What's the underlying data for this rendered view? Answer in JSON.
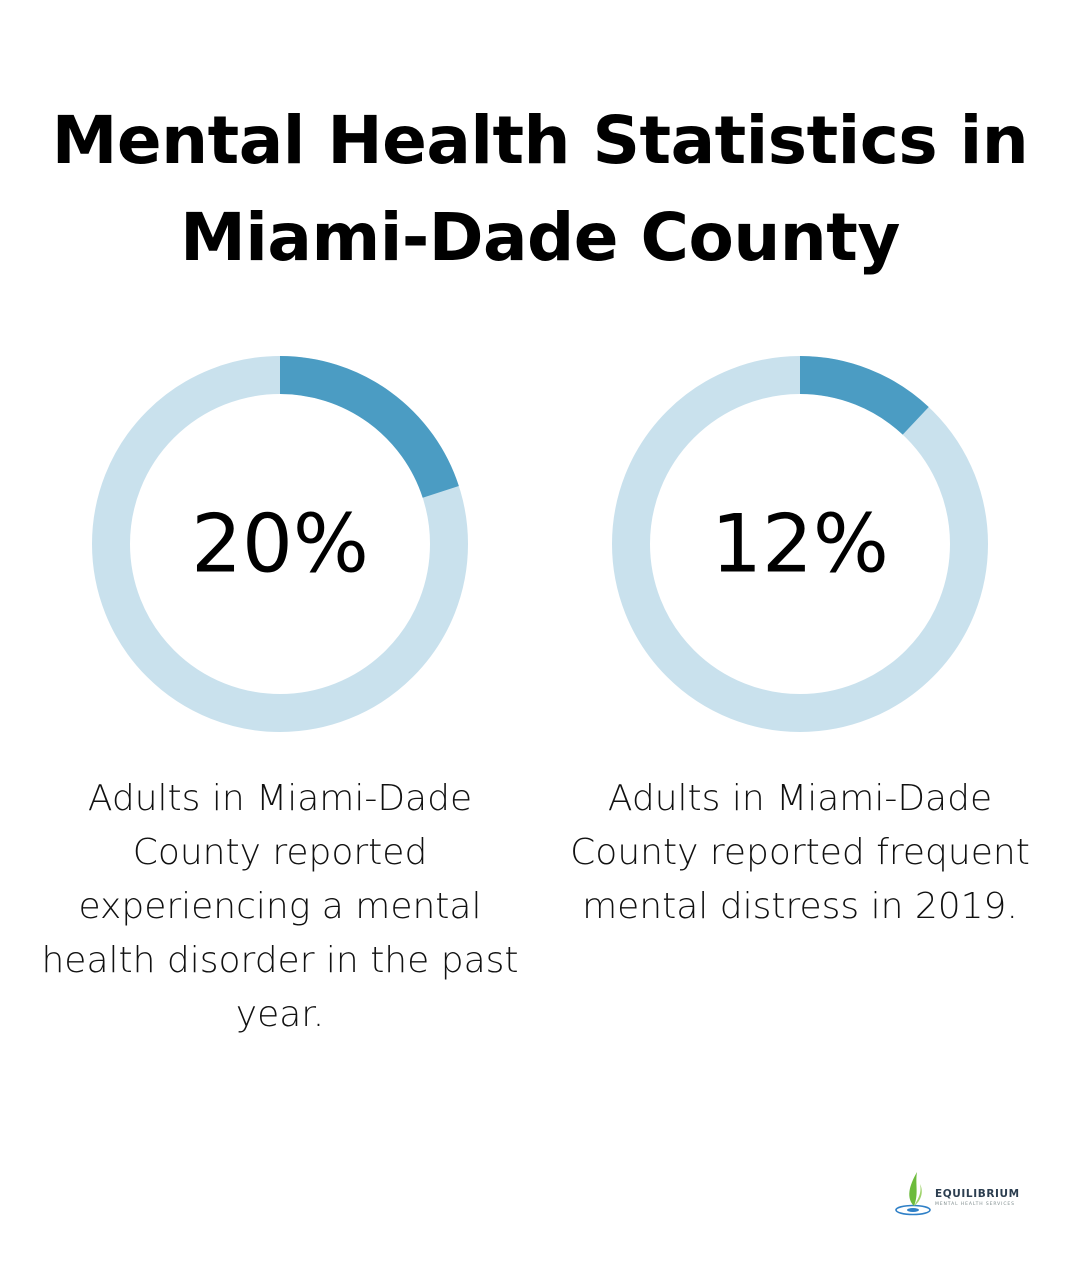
{
  "title": "Mental Health Statistics in Miami-Dade County",
  "colors": {
    "track": "#c9e1ed",
    "fill": "#4b9cc3",
    "text": "#000000"
  },
  "chart_data": [
    {
      "type": "pie",
      "variant": "donut",
      "value": 20,
      "max": 100,
      "label": "20%",
      "caption": "Adults in Miami-Dade County reported experiencing a mental health disorder in the past year."
    },
    {
      "type": "pie",
      "variant": "donut",
      "value": 12,
      "max": 100,
      "label": "12%",
      "caption": "Adults in Miami-Dade County reported frequent mental distress in 2019."
    }
  ],
  "logo": {
    "name": "EQUILIBRIUM",
    "tagline": "MENTAL HEALTH SERVICES",
    "icon": "leaf-drop-icon"
  }
}
